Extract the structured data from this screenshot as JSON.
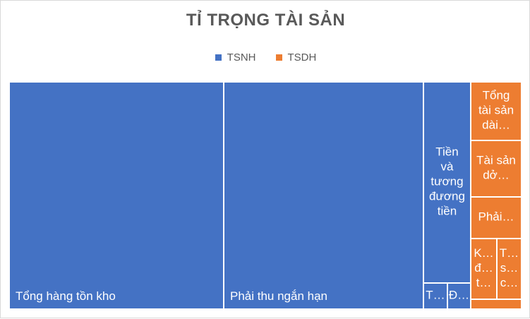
{
  "chart_data": {
    "type": "treemap",
    "title": "TỈ TRỌNG TÀI SẢN",
    "legend_position": "top",
    "series": [
      {
        "name": "TSNH",
        "color": "#4472C4"
      },
      {
        "name": "TSDH",
        "color": "#ED7D31"
      }
    ],
    "items": [
      {
        "group": "TSNH",
        "label": "Tổng hàng tồn kho",
        "display_lines": [
          "Tổng hàng tồn kho"
        ],
        "label_position": "bottom-left"
      },
      {
        "group": "TSNH",
        "label": "Phải thu ngắn hạn",
        "display_lines": [
          "Phải thu ngắn hạn"
        ],
        "label_position": "bottom-left"
      },
      {
        "group": "TSNH",
        "label": "Tiền và tương đương tiền",
        "display_lines": [
          "Tiền",
          "và",
          "tương",
          "đương",
          "tiền"
        ],
        "label_position": "center"
      },
      {
        "group": "TSNH",
        "label": "T…",
        "display_lines": [
          "T…"
        ],
        "label_position": "center"
      },
      {
        "group": "TSNH",
        "label": "Đ…",
        "display_lines": [
          "Đ…"
        ],
        "label_position": "center"
      },
      {
        "group": "TSDH",
        "label": "Tổng tài sản dài…",
        "display_lines": [
          "Tổng",
          "tài sản",
          "dài…"
        ],
        "label_position": "center"
      },
      {
        "group": "TSDH",
        "label": "Tài sản dở…",
        "display_lines": [
          "Tài sản",
          "dở…"
        ],
        "label_position": "center"
      },
      {
        "group": "TSDH",
        "label": "Phải…",
        "display_lines": [
          "Phải…"
        ],
        "label_position": "center"
      },
      {
        "group": "TSDH",
        "label": "K… đ… t…",
        "display_lines": [
          "K…",
          "đ…",
          "t…"
        ],
        "label_position": "center"
      },
      {
        "group": "TSDH",
        "label": "T… s… c…",
        "display_lines": [
          "T…",
          "s…",
          "c…"
        ],
        "label_position": "center"
      },
      {
        "group": "TSDH",
        "label": "",
        "display_lines": [],
        "label_position": "center"
      }
    ]
  }
}
